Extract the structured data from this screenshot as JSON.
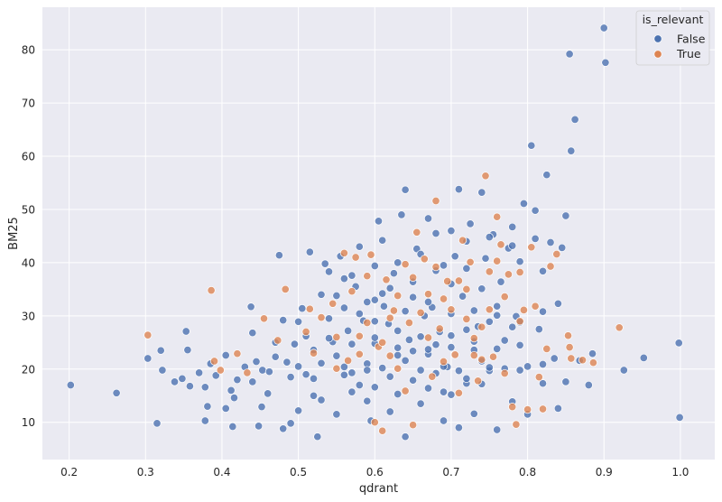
{
  "chart_data": {
    "type": "scatter",
    "xlabel": "qdrant",
    "ylabel": "BM25",
    "xlim": [
      0.165,
      1.045
    ],
    "ylim": [
      3.0,
      88.0
    ],
    "xticks": [
      "0.2",
      "0.3",
      "0.4",
      "0.5",
      "0.6",
      "0.7",
      "0.8",
      "0.9",
      "1.0"
    ],
    "yticks": [
      "10",
      "20",
      "30",
      "40",
      "50",
      "60",
      "70",
      "80"
    ],
    "grid": true,
    "legend": {
      "title": "is_relevant",
      "position": "top-right"
    },
    "series": [
      {
        "name": "False",
        "color": "#4c72b0",
        "points": [
          [
            0.202,
            17.0
          ],
          [
            0.262,
            15.5
          ],
          [
            0.303,
            22.0
          ],
          [
            0.315,
            9.8
          ],
          [
            0.32,
            23.5
          ],
          [
            0.322,
            19.8
          ],
          [
            0.338,
            17.6
          ],
          [
            0.348,
            18.2
          ],
          [
            0.353,
            27.1
          ],
          [
            0.355,
            23.6
          ],
          [
            0.358,
            16.8
          ],
          [
            0.37,
            19.3
          ],
          [
            0.378,
            16.6
          ],
          [
            0.381,
            13.0
          ],
          [
            0.378,
            10.3
          ],
          [
            0.385,
            21.0
          ],
          [
            0.392,
            18.8
          ],
          [
            0.405,
            22.6
          ],
          [
            0.405,
            12.6
          ],
          [
            0.412,
            16.0
          ],
          [
            0.414,
            9.2
          ],
          [
            0.416,
            14.6
          ],
          [
            0.43,
            20.4
          ],
          [
            0.438,
            31.7
          ],
          [
            0.44,
            17.6
          ],
          [
            0.445,
            21.4
          ],
          [
            0.448,
            9.3
          ],
          [
            0.452,
            12.9
          ],
          [
            0.453,
            19.8
          ],
          [
            0.462,
            19.5
          ],
          [
            0.47,
            22.3
          ],
          [
            0.475,
            41.4
          ],
          [
            0.48,
            29.2
          ],
          [
            0.485,
            21.3
          ],
          [
            0.49,
            9.8
          ],
          [
            0.495,
            24.7
          ],
          [
            0.5,
            20.5
          ],
          [
            0.505,
            31.4
          ],
          [
            0.51,
            26.2
          ],
          [
            0.515,
            42.0
          ],
          [
            0.52,
            18.2
          ],
          [
            0.525,
            7.3
          ],
          [
            0.53,
            34.0
          ],
          [
            0.535,
            39.8
          ],
          [
            0.54,
            29.5
          ],
          [
            0.545,
            25.1
          ],
          [
            0.55,
            22.5
          ],
          [
            0.555,
            41.2
          ],
          [
            0.56,
            37.0
          ],
          [
            0.565,
            27.2
          ],
          [
            0.57,
            19.3
          ],
          [
            0.575,
            35.5
          ],
          [
            0.58,
            43.0
          ],
          [
            0.585,
            29.1
          ],
          [
            0.59,
            14.0
          ],
          [
            0.595,
            10.3
          ],
          [
            0.6,
            24.8
          ],
          [
            0.605,
            47.8
          ],
          [
            0.61,
            44.2
          ],
          [
            0.612,
            31.8
          ],
          [
            0.618,
            28.5
          ],
          [
            0.625,
            38.0
          ],
          [
            0.63,
            22.6
          ],
          [
            0.635,
            49.0
          ],
          [
            0.64,
            53.7
          ],
          [
            0.645,
            25.5
          ],
          [
            0.65,
            36.4
          ],
          [
            0.655,
            42.6
          ],
          [
            0.66,
            19.8
          ],
          [
            0.665,
            30.0
          ],
          [
            0.67,
            48.3
          ],
          [
            0.675,
            31.6
          ],
          [
            0.68,
            45.5
          ],
          [
            0.685,
            27.0
          ],
          [
            0.69,
            15.7
          ],
          [
            0.695,
            20.4
          ],
          [
            0.7,
            46.0
          ],
          [
            0.705,
            41.2
          ],
          [
            0.71,
            53.8
          ],
          [
            0.715,
            33.7
          ],
          [
            0.72,
            17.3
          ],
          [
            0.725,
            47.3
          ],
          [
            0.73,
            23.6
          ],
          [
            0.735,
            28.0
          ],
          [
            0.74,
            53.2
          ],
          [
            0.745,
            40.8
          ],
          [
            0.75,
            19.7
          ],
          [
            0.755,
            45.3
          ],
          [
            0.76,
            31.8
          ],
          [
            0.765,
            36.4
          ],
          [
            0.77,
            25.4
          ],
          [
            0.775,
            42.7
          ],
          [
            0.78,
            46.7
          ],
          [
            0.785,
            29.9
          ],
          [
            0.79,
            40.2
          ],
          [
            0.795,
            51.1
          ],
          [
            0.8,
            20.5
          ],
          [
            0.805,
            62.0
          ],
          [
            0.81,
            49.8
          ],
          [
            0.815,
            27.5
          ],
          [
            0.82,
            38.4
          ],
          [
            0.825,
            56.5
          ],
          [
            0.83,
            43.8
          ],
          [
            0.835,
            22.0
          ],
          [
            0.84,
            32.3
          ],
          [
            0.845,
            42.8
          ],
          [
            0.85,
            48.8
          ],
          [
            0.855,
            79.2
          ],
          [
            0.857,
            61.0
          ],
          [
            0.862,
            66.9
          ],
          [
            0.868,
            21.6
          ],
          [
            0.88,
            17.0
          ],
          [
            0.885,
            22.9
          ],
          [
            0.9,
            84.1
          ],
          [
            0.902,
            77.6
          ],
          [
            0.926,
            19.8
          ],
          [
            0.952,
            22.1
          ],
          [
            0.998,
            24.9
          ],
          [
            0.999,
            10.9
          ],
          [
            0.52,
            15.0
          ],
          [
            0.55,
            11.5
          ],
          [
            0.58,
            17.0
          ],
          [
            0.62,
            12.0
          ],
          [
            0.64,
            7.3
          ],
          [
            0.66,
            13.5
          ],
          [
            0.69,
            10.3
          ],
          [
            0.71,
            9.0
          ],
          [
            0.73,
            11.6
          ],
          [
            0.76,
            8.6
          ],
          [
            0.78,
            13.9
          ],
          [
            0.8,
            11.5
          ],
          [
            0.82,
            17.3
          ],
          [
            0.84,
            12.6
          ],
          [
            0.6,
            33.0
          ],
          [
            0.62,
            35.2
          ],
          [
            0.65,
            33.5
          ],
          [
            0.68,
            38.5
          ],
          [
            0.7,
            36.0
          ],
          [
            0.72,
            38.9
          ],
          [
            0.74,
            35.1
          ],
          [
            0.56,
            31.5
          ],
          [
            0.58,
            30.4
          ],
          [
            0.6,
            29.0
          ],
          [
            0.63,
            27.2
          ],
          [
            0.66,
            26.1
          ],
          [
            0.68,
            24.6
          ],
          [
            0.7,
            26.3
          ],
          [
            0.72,
            27.4
          ],
          [
            0.75,
            28.9
          ],
          [
            0.78,
            27.9
          ],
          [
            0.53,
            21.1
          ],
          [
            0.56,
            20.4
          ],
          [
            0.59,
            21.0
          ],
          [
            0.61,
            20.2
          ],
          [
            0.64,
            21.6
          ],
          [
            0.67,
            22.8
          ],
          [
            0.69,
            20.5
          ],
          [
            0.71,
            19.7
          ],
          [
            0.74,
            21.5
          ],
          [
            0.77,
            20.1
          ],
          [
            0.5,
            28.9
          ],
          [
            0.52,
            23.6
          ],
          [
            0.54,
            25.8
          ],
          [
            0.57,
            24.7
          ],
          [
            0.6,
            25.9
          ],
          [
            0.63,
            24.0
          ],
          [
            0.65,
            23.4
          ],
          [
            0.67,
            23.7
          ],
          [
            0.7,
            24.1
          ],
          [
            0.73,
            25.2
          ],
          [
            0.76,
            23.8
          ],
          [
            0.79,
            24.5
          ],
          [
            0.46,
            15.4
          ],
          [
            0.48,
            8.8
          ],
          [
            0.5,
            12.2
          ],
          [
            0.53,
            14.2
          ],
          [
            0.57,
            15.7
          ],
          [
            0.6,
            16.6
          ],
          [
            0.63,
            15.3
          ],
          [
            0.67,
            16.4
          ],
          [
            0.7,
            15.2
          ],
          [
            0.74,
            17.2
          ],
          [
            0.54,
            38.3
          ],
          [
            0.57,
            37.6
          ],
          [
            0.6,
            39.4
          ],
          [
            0.63,
            40.0
          ],
          [
            0.66,
            41.6
          ],
          [
            0.69,
            39.5
          ],
          [
            0.72,
            44.0
          ],
          [
            0.75,
            44.8
          ],
          [
            0.78,
            43.2
          ],
          [
            0.81,
            44.5
          ],
          [
            0.42,
            18.0
          ],
          [
            0.44,
            26.8
          ],
          [
            0.47,
            25.0
          ],
          [
            0.49,
            18.5
          ],
          [
            0.51,
            19.0
          ],
          [
            0.56,
            18.9
          ],
          [
            0.59,
            19.8
          ],
          [
            0.62,
            18.6
          ],
          [
            0.65,
            17.9
          ],
          [
            0.68,
            19.2
          ],
          [
            0.72,
            18.2
          ],
          [
            0.75,
            20.3
          ],
          [
            0.79,
            19.8
          ],
          [
            0.82,
            20.9
          ],
          [
            0.85,
            17.6
          ],
          [
            0.55,
            33.8
          ],
          [
            0.59,
            32.6
          ],
          [
            0.61,
            34.2
          ],
          [
            0.64,
            30.9
          ],
          [
            0.67,
            32.6
          ],
          [
            0.7,
            30.4
          ],
          [
            0.73,
            31.0
          ],
          [
            0.76,
            30.1
          ],
          [
            0.79,
            28.8
          ],
          [
            0.82,
            30.8
          ]
        ]
      },
      {
        "name": "True",
        "color": "#dd8452",
        "points": [
          [
            0.303,
            26.4
          ],
          [
            0.386,
            34.8
          ],
          [
            0.39,
            21.5
          ],
          [
            0.398,
            19.8
          ],
          [
            0.42,
            22.9
          ],
          [
            0.433,
            19.3
          ],
          [
            0.455,
            29.5
          ],
          [
            0.473,
            25.4
          ],
          [
            0.483,
            35.0
          ],
          [
            0.51,
            27.0
          ],
          [
            0.515,
            31.3
          ],
          [
            0.52,
            23.0
          ],
          [
            0.53,
            29.7
          ],
          [
            0.545,
            32.3
          ],
          [
            0.55,
            26.0
          ],
          [
            0.56,
            41.8
          ],
          [
            0.565,
            21.6
          ],
          [
            0.575,
            41.0
          ],
          [
            0.58,
            26.2
          ],
          [
            0.59,
            37.5
          ],
          [
            0.595,
            41.5
          ],
          [
            0.6,
            10.0
          ],
          [
            0.605,
            24.2
          ],
          [
            0.61,
            8.4
          ],
          [
            0.615,
            36.8
          ],
          [
            0.62,
            22.5
          ],
          [
            0.625,
            31.0
          ],
          [
            0.63,
            33.8
          ],
          [
            0.64,
            39.7
          ],
          [
            0.645,
            28.7
          ],
          [
            0.65,
            9.5
          ],
          [
            0.655,
            45.7
          ],
          [
            0.66,
            30.6
          ],
          [
            0.665,
            40.7
          ],
          [
            0.67,
            34.1
          ],
          [
            0.675,
            18.6
          ],
          [
            0.68,
            51.6
          ],
          [
            0.685,
            27.6
          ],
          [
            0.69,
            21.4
          ],
          [
            0.695,
            36.5
          ],
          [
            0.7,
            31.2
          ],
          [
            0.705,
            22.7
          ],
          [
            0.71,
            15.5
          ],
          [
            0.715,
            44.2
          ],
          [
            0.72,
            29.4
          ],
          [
            0.725,
            40.1
          ],
          [
            0.73,
            22.6
          ],
          [
            0.735,
            17.8
          ],
          [
            0.74,
            21.8
          ],
          [
            0.745,
            56.3
          ],
          [
            0.75,
            38.3
          ],
          [
            0.755,
            22.3
          ],
          [
            0.76,
            48.6
          ],
          [
            0.765,
            43.4
          ],
          [
            0.77,
            19.2
          ],
          [
            0.775,
            37.8
          ],
          [
            0.78,
            12.9
          ],
          [
            0.785,
            9.6
          ],
          [
            0.79,
            38.2
          ],
          [
            0.795,
            31.1
          ],
          [
            0.8,
            12.4
          ],
          [
            0.805,
            42.9
          ],
          [
            0.81,
            31.8
          ],
          [
            0.815,
            18.5
          ],
          [
            0.82,
            12.5
          ],
          [
            0.825,
            23.8
          ],
          [
            0.83,
            39.3
          ],
          [
            0.838,
            41.6
          ],
          [
            0.853,
            26.3
          ],
          [
            0.855,
            24.1
          ],
          [
            0.857,
            22.0
          ],
          [
            0.872,
            21.7
          ],
          [
            0.886,
            21.2
          ],
          [
            0.92,
            27.8
          ],
          [
            0.57,
            34.6
          ],
          [
            0.59,
            28.7
          ],
          [
            0.61,
            25.0
          ],
          [
            0.63,
            20.1
          ],
          [
            0.65,
            37.2
          ],
          [
            0.67,
            25.9
          ],
          [
            0.69,
            33.2
          ],
          [
            0.71,
            36.6
          ],
          [
            0.73,
            25.8
          ],
          [
            0.75,
            31.2
          ],
          [
            0.77,
            33.6
          ],
          [
            0.79,
            29.0
          ],
          [
            0.55,
            20.1
          ],
          [
            0.58,
            22.8
          ],
          [
            0.62,
            29.6
          ],
          [
            0.64,
            15.9
          ],
          [
            0.68,
            39.2
          ],
          [
            0.72,
            35.0
          ],
          [
            0.74,
            27.9
          ],
          [
            0.76,
            40.3
          ]
        ]
      }
    ]
  }
}
